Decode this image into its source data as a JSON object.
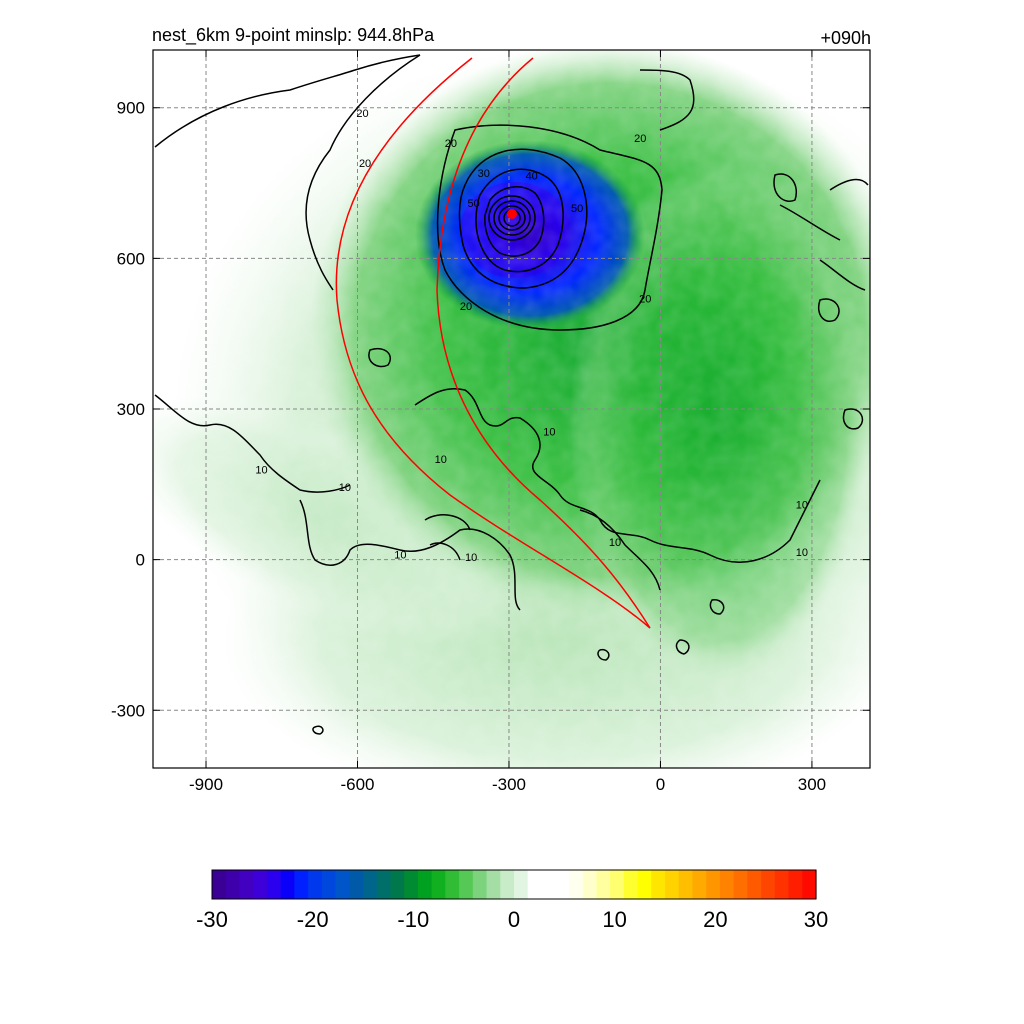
{
  "title_left": "nest_6km  9-point minslp: 944.8hPa",
  "title_right": "+090h",
  "chart_data": {
    "type": "heatmap",
    "x_range": [
      -1005,
      415
    ],
    "y_range": [
      -415,
      1015
    ],
    "x_ticks": [
      -900,
      -600,
      -300,
      0,
      300
    ],
    "y_ticks": [
      900,
      600,
      300,
      0,
      -300
    ],
    "grid": true,
    "storm_center": {
      "x": -295,
      "y": 685,
      "minslp_hPa": 944.8
    },
    "contour_labels": [
      {
        "text": "20",
        "x": -590,
        "y": 890
      },
      {
        "text": "20",
        "x": -585,
        "y": 790
      },
      {
        "text": "20",
        "x": -415,
        "y": 830
      },
      {
        "text": "30",
        "x": -350,
        "y": 770
      },
      {
        "text": "40",
        "x": -255,
        "y": 765
      },
      {
        "text": "50",
        "x": -370,
        "y": 710
      },
      {
        "text": "50",
        "x": -165,
        "y": 700
      },
      {
        "text": "20",
        "x": -40,
        "y": 840
      },
      {
        "text": "20",
        "x": -30,
        "y": 520
      },
      {
        "text": "20",
        "x": -385,
        "y": 505
      },
      {
        "text": "10",
        "x": -220,
        "y": 255
      },
      {
        "text": "10",
        "x": -435,
        "y": 200
      },
      {
        "text": "10",
        "x": -790,
        "y": 180
      },
      {
        "text": "10",
        "x": -625,
        "y": 145
      },
      {
        "text": "10",
        "x": -515,
        "y": 10
      },
      {
        "text": "10",
        "x": -375,
        "y": 5
      },
      {
        "text": "10",
        "x": -90,
        "y": 35
      },
      {
        "text": "10",
        "x": 280,
        "y": 110
      },
      {
        "text": "10",
        "x": 280,
        "y": 15
      }
    ],
    "colorbar": {
      "min": -30,
      "max": 30,
      "tick_labels": [
        "-30",
        "-20",
        "-10",
        "0",
        "10",
        "20",
        "30"
      ],
      "tick_values": [
        -30,
        -20,
        -10,
        0,
        10,
        20,
        30
      ],
      "colors": [
        "#3a0096",
        "#3e00aa",
        "#4200c0",
        "#3e00d8",
        "#2a00ee",
        "#0a00fa",
        "#0020ff",
        "#0038ee",
        "#0048dd",
        "#0055c8",
        "#005aa8",
        "#00658a",
        "#006f6a",
        "#00784c",
        "#008a32",
        "#00a020",
        "#10b020",
        "#30bc35",
        "#55c855",
        "#7dd27d",
        "#a4dea4",
        "#c8ebc8",
        "#e2f5e2",
        "#ffffff",
        "#ffffff",
        "#ffffff",
        "#fffff0",
        "#ffffcc",
        "#ffffa0",
        "#ffff70",
        "#ffff30",
        "#ffff00",
        "#ffe600",
        "#ffd200",
        "#ffbe00",
        "#ffaa00",
        "#ff9600",
        "#ff8200",
        "#ff6e00",
        "#ff5a00",
        "#ff4600",
        "#ff3200",
        "#ff1e00",
        "#ff0a00"
      ]
    }
  }
}
